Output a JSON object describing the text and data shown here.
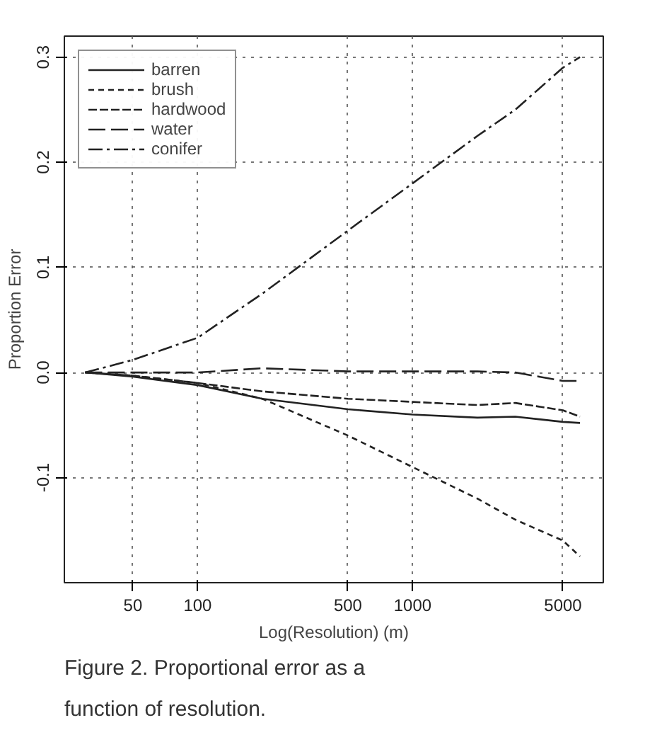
{
  "chart_data": {
    "type": "line",
    "xlabel": "Log(Resolution) (m)",
    "ylabel": "Proportion Error",
    "log": "x",
    "x": [
      30,
      50,
      100,
      200,
      500,
      1000,
      2000,
      3000,
      5000,
      6000
    ],
    "series": [
      {
        "name": "barren",
        "color": "#222222",
        "line_style": "solid",
        "values": [
          0,
          -0.004,
          -0.012,
          -0.025,
          -0.035,
          -0.04,
          -0.043,
          -0.042,
          -0.047,
          -0.048
        ]
      },
      {
        "name": "brush",
        "color": "#222222",
        "line_style": "dotted",
        "values": [
          0,
          -0.003,
          -0.01,
          -0.025,
          -0.06,
          -0.09,
          -0.12,
          -0.14,
          -0.16,
          -0.175
        ]
      },
      {
        "name": "hardwood",
        "color": "#222222",
        "line_style": "dashed",
        "values": [
          0,
          -0.003,
          -0.01,
          -0.018,
          -0.025,
          -0.028,
          -0.031,
          -0.029,
          -0.036,
          -0.042
        ]
      },
      {
        "name": "water",
        "color": "#222222",
        "line_style": "longdash",
        "values": [
          0,
          0,
          0,
          0.004,
          0.001,
          0.001,
          0.001,
          0,
          -0.008,
          -0.008
        ]
      },
      {
        "name": "conifer",
        "color": "#222222",
        "line_style": "dashdot",
        "values": [
          0,
          0.012,
          0.033,
          0.075,
          0.135,
          0.18,
          0.225,
          0.25,
          0.29,
          0.3
        ]
      }
    ],
    "xlim": [
      24,
      7700
    ],
    "ylim": [
      -0.2,
      0.32
    ],
    "xticks": [
      50,
      100,
      500,
      1000,
      5000
    ],
    "yticks": [
      -0.1,
      {
        "value": 0,
        "label": "0.0"
      },
      0.1,
      0.2,
      0.3
    ],
    "grid": true,
    "legend": "top left",
    "annotations": [
      "Figure 2. Proportional error as a function of resolution."
    ]
  }
}
